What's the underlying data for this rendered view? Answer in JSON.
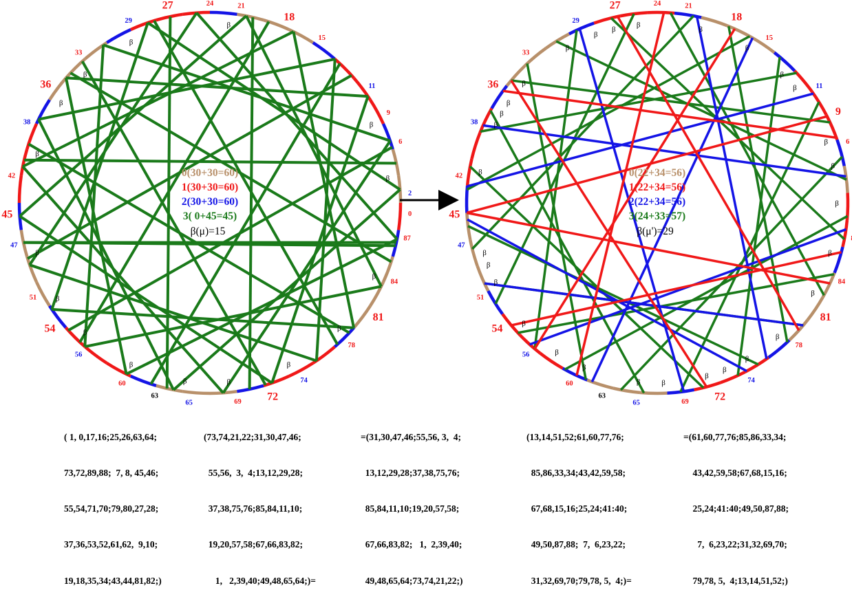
{
  "colors": {
    "class0": "#b8906a",
    "class1": "#f01818",
    "class2": "#1414e6",
    "class3": "#1a7a1a",
    "black": "#000000"
  },
  "beta_symbol": "β",
  "left_circle": {
    "highlighted_labels": [
      "27",
      "18",
      "36",
      "45",
      "54",
      "72",
      "81"
    ],
    "labels": [
      {
        "text": "0",
        "angle": -3,
        "cls": "class1"
      },
      {
        "text": "2",
        "angle": 3,
        "cls": "class2"
      },
      {
        "text": "6",
        "angle": 18,
        "cls": "class1"
      },
      {
        "text": "9",
        "angle": 27,
        "cls": "class1"
      },
      {
        "text": "11",
        "angle": 36,
        "cls": "class2"
      },
      {
        "text": "15",
        "angle": 56,
        "cls": "class1"
      },
      {
        "text": "18",
        "angle": 67,
        "cls": "class1"
      },
      {
        "text": "21",
        "angle": 81,
        "cls": "class1"
      },
      {
        "text": "24",
        "angle": 90,
        "cls": "class1"
      },
      {
        "text": "27",
        "angle": 102,
        "cls": "class1"
      },
      {
        "text": "29",
        "angle": 114,
        "cls": "class2"
      },
      {
        "text": "33",
        "angle": 131,
        "cls": "class1"
      },
      {
        "text": "36",
        "angle": 144,
        "cls": "class1"
      },
      {
        "text": "38",
        "angle": 156,
        "cls": "class2"
      },
      {
        "text": "42",
        "angle": 172,
        "cls": "class1"
      },
      {
        "text": "45",
        "angle": 183,
        "cls": "class1"
      },
      {
        "text": "47",
        "angle": 192,
        "cls": "class2"
      },
      {
        "text": "51",
        "angle": 208,
        "cls": "class1"
      },
      {
        "text": "54",
        "angle": 218,
        "cls": "class1"
      },
      {
        "text": "56",
        "angle": 229,
        "cls": "class2"
      },
      {
        "text": "60",
        "angle": 244,
        "cls": "class1"
      },
      {
        "text": "63",
        "angle": 254,
        "cls": "black"
      },
      {
        "text": "65",
        "angle": 264,
        "cls": "class2"
      },
      {
        "text": "69",
        "angle": 278,
        "cls": "class1"
      },
      {
        "text": "72",
        "angle": 288,
        "cls": "class1"
      },
      {
        "text": "74",
        "angle": 298,
        "cls": "class2"
      },
      {
        "text": "78",
        "angle": 315,
        "cls": "class1"
      },
      {
        "text": "81",
        "angle": 326,
        "cls": "class1"
      },
      {
        "text": "84",
        "angle": 337,
        "cls": "class1"
      },
      {
        "text": "87",
        "angle": 350,
        "cls": "class1"
      }
    ],
    "legend": {
      "line0": "0(30+30=60)",
      "line1": "1(30+30=60)",
      "line2": "2(30+30=60)",
      "line3": "3(  0+45=45)",
      "beta_line": "β(μ)=15"
    }
  },
  "right_circle": {
    "legend": {
      "line0": "0(22+34=56)",
      "line1": "1(22+34=56)",
      "line2": "2(22+34=56)",
      "line3": "3(24+33=57)",
      "beta_line": "β(μ')=29"
    }
  },
  "sequences": {
    "col1": [
      "( 1, 0,17,16;25,26,63,64;",
      "73,72,89,88;  7, 8, 45,46;",
      "55,54,71,70;79,80,27,28;",
      "37,36,53,52,61,62,  9,10;",
      "19,18,35,34;43,44,81,82;)"
    ],
    "col2": [
      "(73,74,21,22;31,30,47,46;",
      "  55,56,  3,  4;13,12,29,28;",
      "  37,38,75,76;85,84,11,10;",
      "  19,20,57,58;67,66,83,82;",
      "     1,   2,39,40;49,48,65,64;)="
    ],
    "col3": [
      "=(31,30,47,46;55,56, 3,  4;",
      "  13,12,29,28;37,38,75,76;",
      "  85,84,11,10;19,20,57,58;",
      "  67,66,83,82;   1,  2,39,40;",
      "  49,48,65,64;73,74,21,22;)"
    ],
    "col4": [
      "(13,14,51,52;61,60,77,76;",
      "  85,86,33,34;43,42,59,58;",
      "  67,68,15,16;25,24;41:40;",
      "  49,50,87,88;  7,  6,23,22;",
      "  31,32,69,70;79,78, 5,  4;)="
    ],
    "col5": [
      "=(61,60,77,76;85,86,33,34;",
      "    43,42,59,58;67,68,15,16;",
      "    25,24;41:40;49,50,87,88;",
      "      7,  6,23,22;31,32,69,70;",
      "    79,78, 5,  4;13,14,51,52;)"
    ]
  }
}
